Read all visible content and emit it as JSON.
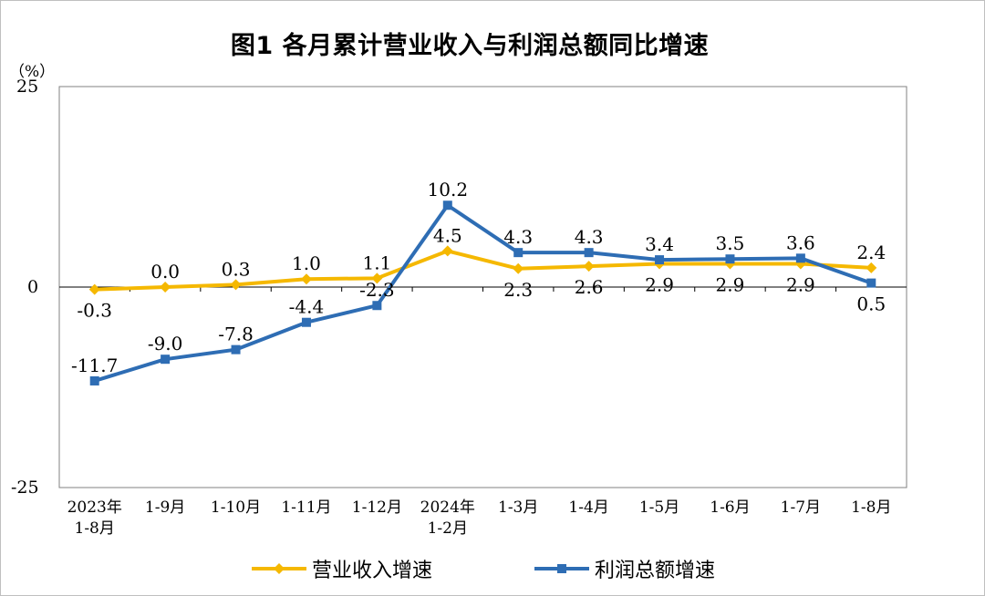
{
  "title": "图1  各月累计营业收入与利润总额同比增速",
  "unit": "（%）",
  "chart_data": {
    "type": "line",
    "title": "图1  各月累计营业收入与利润总额同比增速",
    "ylabel": "（%）",
    "ylim": [
      -25,
      25
    ],
    "yticks": [
      "25",
      "0",
      "-25"
    ],
    "categories": [
      "2023年1-8月",
      "1-9月",
      "1-10月",
      "1-11月",
      "1-12月",
      "2024年1-2月",
      "1-3月",
      "1-4月",
      "1-5月",
      "1-6月",
      "1-7月",
      "1-8月"
    ],
    "category_lines": [
      [
        "2023年",
        "1-8月"
      ],
      [
        "1-9月"
      ],
      [
        "1-10月"
      ],
      [
        "1-11月"
      ],
      [
        "1-12月"
      ],
      [
        "2024年",
        "1-2月"
      ],
      [
        "1-3月"
      ],
      [
        "1-4月"
      ],
      [
        "1-5月"
      ],
      [
        "1-6月"
      ],
      [
        "1-7月"
      ],
      [
        "1-8月"
      ]
    ],
    "grid": false,
    "legend_position": "bottom",
    "series": [
      {
        "name": "营业收入增速",
        "color": "#F5B800",
        "marker": "diamond",
        "values": [
          -0.3,
          0.0,
          0.3,
          1.0,
          1.1,
          4.5,
          2.3,
          2.6,
          2.9,
          2.9,
          2.9,
          2.4
        ],
        "labels": [
          "-0.3",
          "0.0",
          "0.3",
          "1.0",
          "1.1",
          "4.5",
          "2.3",
          "2.6",
          "2.9",
          "2.9",
          "2.9",
          "2.4"
        ],
        "label_side": [
          "below",
          "above",
          "above",
          "above",
          "above",
          "above",
          "below",
          "below",
          "below",
          "below",
          "below",
          "above"
        ]
      },
      {
        "name": "利润总额增速",
        "color": "#2E6DB4",
        "marker": "square",
        "values": [
          -11.7,
          -9.0,
          -7.8,
          -4.4,
          -2.3,
          10.2,
          4.3,
          4.3,
          3.4,
          3.5,
          3.6,
          0.5
        ],
        "labels": [
          "-11.7",
          "-9.0",
          "-7.8",
          "-4.4",
          "-2.3",
          "10.2",
          "4.3",
          "4.3",
          "3.4",
          "3.5",
          "3.6",
          "0.5"
        ],
        "label_side": [
          "above",
          "above",
          "above",
          "above",
          "above",
          "above",
          "above",
          "above",
          "above",
          "above",
          "above",
          "below"
        ]
      }
    ]
  }
}
